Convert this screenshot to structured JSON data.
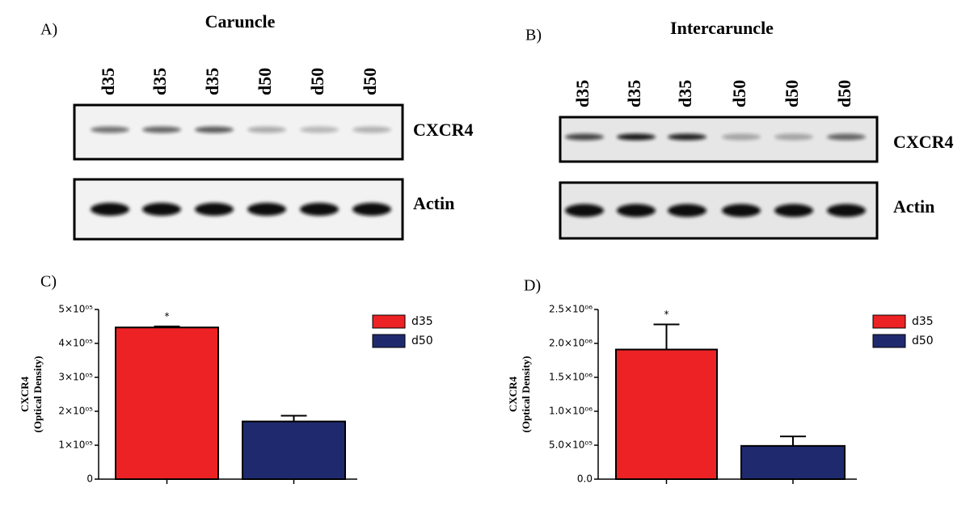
{
  "blots": [
    {
      "label": "A)",
      "title": "Caruncle",
      "lanes": [
        "d35",
        "d35",
        "d35",
        "d50",
        "d50",
        "d50"
      ],
      "rows": [
        "CXCR4",
        "Actin"
      ]
    },
    {
      "label": "B)",
      "title": "Intercaruncle",
      "lanes": [
        "d35",
        "d35",
        "d35",
        "d50",
        "d50",
        "d50"
      ],
      "rows": [
        "CXCR4",
        "Actin"
      ]
    }
  ],
  "chart_data": [
    {
      "type": "bar",
      "label": "C)",
      "ylabel": [
        "CXCR4",
        "(Optical Density)"
      ],
      "annotation": "*",
      "ylim": [
        0,
        500000
      ],
      "yticks": [
        0,
        {
          "value": 100000,
          "label": "1×10⁰⁵"
        },
        {
          "value": 200000,
          "label": "2×10⁰⁵"
        },
        {
          "value": 300000,
          "label": "3×10⁰⁵"
        },
        {
          "value": 400000,
          "label": "4×10⁰⁵"
        },
        {
          "value": 500000,
          "label": "5×10⁰⁵"
        }
      ],
      "series": [
        {
          "name": "d35",
          "color": "#ed2224",
          "values": [
            447000
          ],
          "errors": [
            3000
          ]
        },
        {
          "name": "d50",
          "color": "#1f2a6e",
          "values": [
            170000
          ],
          "errors": [
            17000
          ]
        }
      ]
    },
    {
      "type": "bar",
      "label": "D)",
      "ylabel": [
        "CXCR4",
        "(Optical Density)"
      ],
      "annotation": "*",
      "ylim": [
        0,
        2500000
      ],
      "yticks": [
        {
          "value": 0,
          "label": "0.0"
        },
        {
          "value": 500000,
          "label": "5.0×10⁰⁵"
        },
        {
          "value": 1000000,
          "label": "1.0×10⁰⁶"
        },
        {
          "value": 1500000,
          "label": "1.5×10⁰⁶"
        },
        {
          "value": 2000000,
          "label": "2.0×10⁰⁶"
        },
        {
          "value": 2500000,
          "label": "2.5×10⁰⁶"
        }
      ],
      "series": [
        {
          "name": "d35",
          "color": "#ed2224",
          "values": [
            1910000
          ],
          "errors": [
            370000
          ]
        },
        {
          "name": "d50",
          "color": "#1f2a6e",
          "values": [
            490000
          ],
          "errors": [
            140000
          ]
        }
      ]
    }
  ]
}
